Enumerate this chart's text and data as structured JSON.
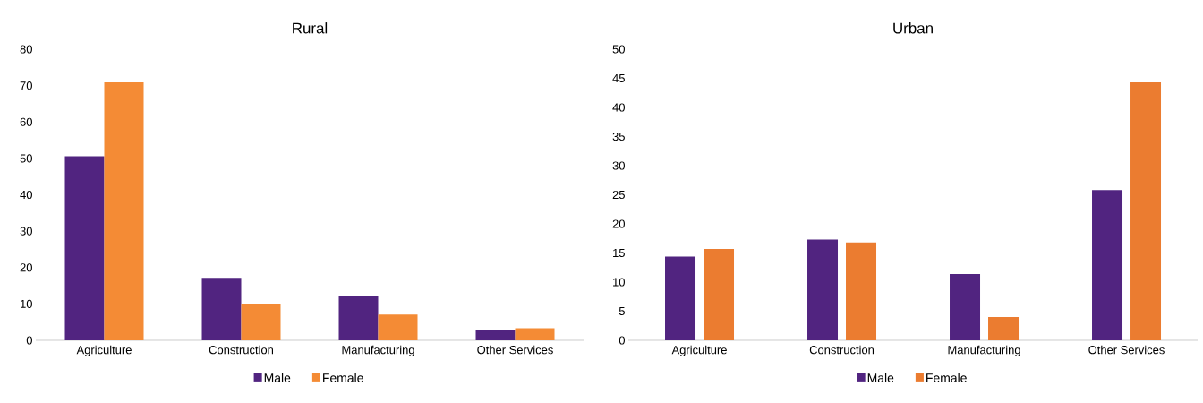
{
  "chart_data": [
    {
      "type": "bar",
      "title": "Rural",
      "categories": [
        "Agriculture",
        "Construction",
        "Manufacturing",
        "Other Services"
      ],
      "series": [
        {
          "name": "Male",
          "color": "#512480",
          "values": [
            50.6,
            17.2,
            12.2,
            2.8
          ]
        },
        {
          "name": "Female",
          "color": "#f48b35",
          "values": [
            70.9,
            10.0,
            7.1,
            3.3
          ]
        }
      ],
      "ylim": [
        0,
        80
      ],
      "yticks": [
        0,
        10,
        20,
        30,
        40,
        50,
        60,
        70,
        80
      ],
      "legend": "bottom"
    },
    {
      "type": "bar",
      "title": "Urban",
      "categories": [
        "Agriculture",
        "Construction",
        "Manufacturing",
        "Other Services"
      ],
      "series": [
        {
          "name": "Male",
          "color": "#512480",
          "values": [
            14.4,
            17.3,
            11.4,
            25.8
          ]
        },
        {
          "name": "Female",
          "color": "#eb7c30",
          "values": [
            15.7,
            16.8,
            4.0,
            44.3
          ]
        }
      ],
      "ylim": [
        0,
        50
      ],
      "yticks": [
        0,
        5,
        10,
        15,
        20,
        25,
        30,
        35,
        40,
        45,
        50
      ],
      "legend": "bottom"
    }
  ]
}
